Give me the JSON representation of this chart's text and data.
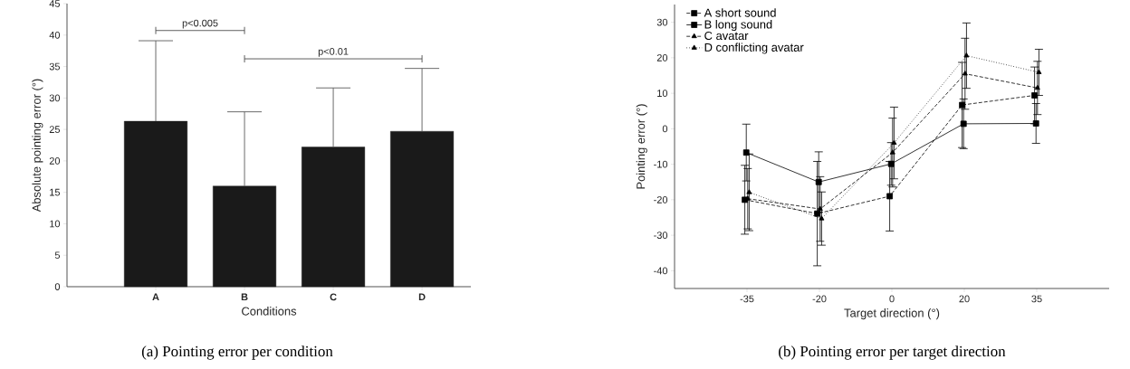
{
  "chart_data": [
    {
      "type": "bar",
      "xlabel": "Conditions",
      "ylabel": "Absolute pointing error (°)",
      "categories": [
        "A",
        "B",
        "C",
        "D"
      ],
      "values": [
        26.3,
        16.0,
        22.2,
        24.7
      ],
      "errors": [
        [
          26.3,
          39.1
        ],
        [
          16.0,
          27.8
        ],
        [
          22.2,
          31.6
        ],
        [
          24.7,
          34.7
        ]
      ],
      "color": "#1a1a1a",
      "ylim": [
        0,
        45
      ],
      "yticks": [
        0,
        5,
        10,
        15,
        20,
        25,
        30,
        35,
        40,
        45
      ],
      "annotations": [
        "p<0.005",
        "p<0.01",
        "(a) Pointing error per condition"
      ]
    },
    {
      "type": "line",
      "xlabel": "Target direction (°)",
      "ylabel": "Pointing error (°)",
      "categories": [
        "-35",
        "-20",
        "0",
        "20",
        "35"
      ],
      "ylim": [
        -45,
        35
      ],
      "yticks": [
        -40,
        -30,
        -20,
        -10,
        0,
        10,
        20,
        30
      ],
      "legend": "top left",
      "series": [
        {
          "name": "A short sound",
          "color": "#000000",
          "marker": "square",
          "line_style": "dashed",
          "values": [
            -20.0,
            -23.9,
            -19.0,
            6.7,
            9.4
          ],
          "errors": [
            9.7,
            14.7,
            9.8,
            12,
            8
          ]
        },
        {
          "name": "B long sound",
          "color": "#000000",
          "marker": "square",
          "line_style": "solid",
          "values": [
            -6.7,
            -15.0,
            -9.9,
            1.4,
            1.5
          ],
          "errors": [
            8,
            8.5,
            6,
            7,
            5.6
          ]
        },
        {
          "name": "C avatar",
          "color": "#000000",
          "marker": "triangle",
          "line_style": "dashed",
          "values": [
            -19.7,
            -22.6,
            -6.7,
            15.5,
            11.5
          ],
          "errors": [
            8.5,
            9.1,
            9.7,
            10,
            7.5
          ]
        },
        {
          "name": "D conflicting avatar",
          "color": "#000000",
          "marker": "triangle",
          "line_style": "dotted",
          "values": [
            -17.9,
            -25.3,
            -4.0,
            20.6,
            15.9
          ],
          "errors": [
            10.8,
            7.5,
            10.1,
            9.2,
            6.5
          ]
        }
      ],
      "annotations": [
        "(b) Pointing error per target direction"
      ]
    }
  ]
}
